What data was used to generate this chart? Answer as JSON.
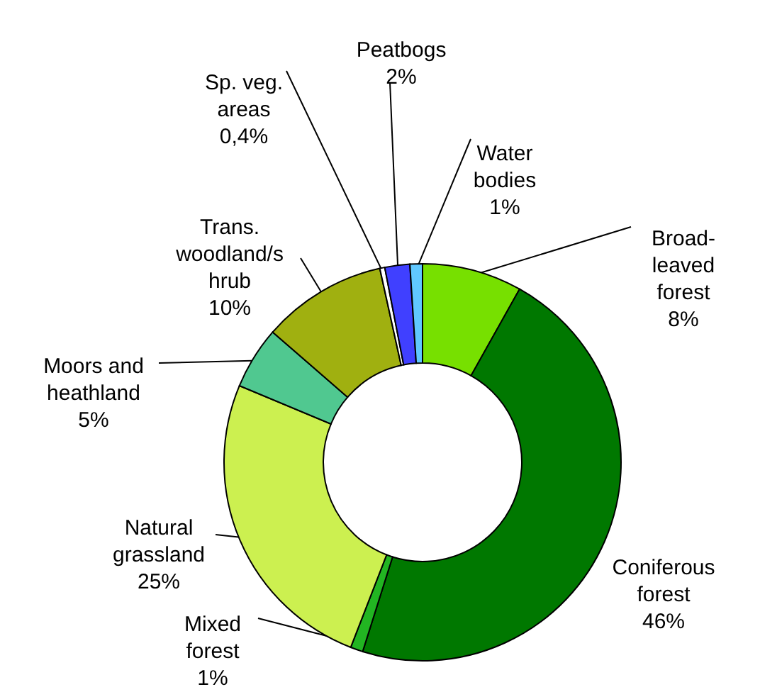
{
  "chart_data": {
    "type": "donut",
    "categories": [
      "Broad-\nleaved\nforest",
      "Coniferous\nforest",
      "Mixed\nforest",
      "Natural\ngrassland",
      "Moors and\nheathland",
      "Trans.\nwoodland/s\nhrub",
      "Sp. veg.\nareas",
      "Peatbogs",
      "Water\nbodies"
    ],
    "values": [
      8,
      46,
      1,
      25,
      5,
      10,
      0.4,
      2,
      1
    ],
    "value_labels": [
      "8%",
      "46%",
      "1%",
      "25%",
      "5%",
      "10%",
      "0,4%",
      "2%",
      "1%"
    ],
    "colors": [
      "#77e000",
      "#007800",
      "#22b522",
      "#ccf050",
      "#50c890",
      "#a0b010",
      "#ffffff",
      "#4040ff",
      "#60c8ff"
    ]
  }
}
